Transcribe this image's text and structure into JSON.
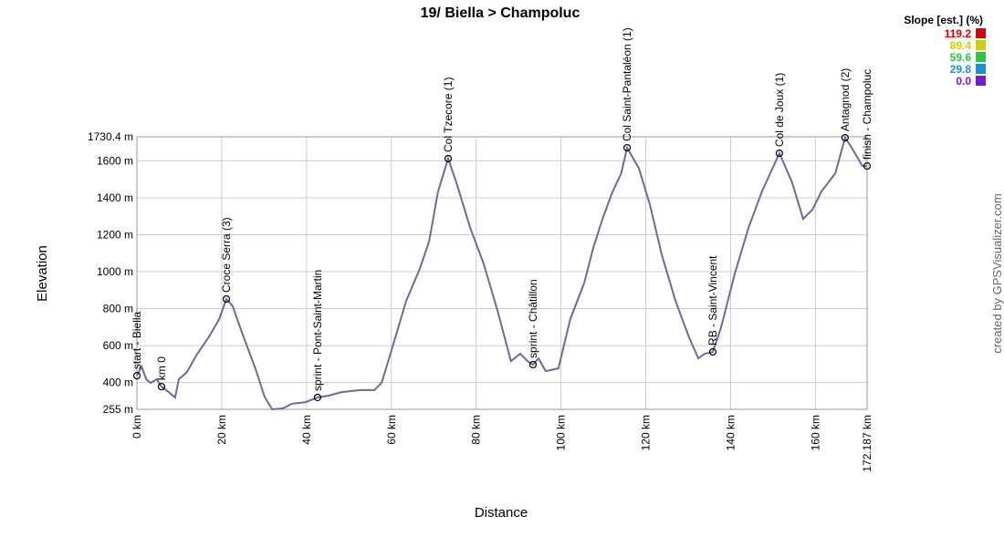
{
  "chart_data": {
    "type": "line",
    "title": "19/ Biella > Champoluc",
    "x_label": "Distance",
    "y_label": "Elevation",
    "credit": "created by GPSVisualizer.com",
    "series": [
      {
        "color": "#6b6b9e",
        "x": [
          0,
          1.1,
          2.2,
          3.2,
          4.7,
          5.8,
          7.5,
          9.0,
          9.9,
          11.8,
          14.0,
          17.2,
          19.4,
          21.1,
          22.6,
          24.8,
          28.0,
          30.1,
          31.9,
          34.4,
          36.6,
          39.8,
          42.6,
          45.2,
          48.4,
          52.7,
          56.0,
          57.7,
          60.3,
          63.5,
          66.7,
          68.9,
          71.0,
          73.4,
          75.3,
          78.6,
          81.8,
          85.0,
          88.2,
          90.4,
          92.1,
          93.4,
          94.7,
          96.4,
          99.4,
          102.2,
          105.5,
          107.6,
          109.8,
          112.0,
          114.2,
          115.6,
          118.4,
          121.0,
          123.8,
          127.0,
          130.2,
          132.4,
          133.9,
          135.8,
          137.7,
          141.0,
          144.2,
          147.4,
          151.5,
          154.5,
          157.1,
          159.3,
          161.4,
          163.1,
          164.7,
          167.0,
          168.3,
          171.1,
          172.187
        ],
        "values": [
          437,
          487,
          418,
          398,
          418,
          378,
          349,
          319,
          418,
          457,
          546,
          655,
          743,
          852,
          813,
          669,
          472,
          324,
          255,
          260,
          285,
          294,
          319,
          329,
          349,
          359,
          359,
          398,
          595,
          842,
          1015,
          1163,
          1434,
          1612,
          1484,
          1237,
          1040,
          793,
          516,
          556,
          516,
          497,
          531,
          462,
          477,
          743,
          941,
          1128,
          1286,
          1424,
          1533,
          1671,
          1558,
          1360,
          1089,
          842,
          645,
          531,
          556,
          566,
          694,
          990,
          1237,
          1434,
          1641,
          1484,
          1286,
          1336,
          1434,
          1484,
          1533,
          1725,
          1681,
          1572,
          1572
        ]
      }
    ],
    "waypoints": [
      {
        "name": "start - Biella",
        "x": 0,
        "y": 437
      },
      {
        "name": "km 0",
        "x": 5.8,
        "y": 378
      },
      {
        "name": "Croce Serra (3)",
        "x": 21.1,
        "y": 852
      },
      {
        "name": "sprint - Pont-Saint-Martin",
        "x": 42.6,
        "y": 319
      },
      {
        "name": "Col Tzecore (1)",
        "x": 73.4,
        "y": 1612
      },
      {
        "name": "sprint - Châtillon",
        "x": 93.4,
        "y": 497
      },
      {
        "name": "Col Saint-Pantaléon (1)",
        "x": 115.6,
        "y": 1671
      },
      {
        "name": "RB - Saint-Vincent",
        "x": 135.8,
        "y": 566
      },
      {
        "name": "Col de Joux (1)",
        "x": 151.5,
        "y": 1641
      },
      {
        "name": "Antagnod (2)",
        "x": 167.0,
        "y": 1725
      },
      {
        "name": "finish - Champoluc",
        "x": 172.187,
        "y": 1572
      }
    ],
    "xlim": [
      0,
      172.187
    ],
    "xticks": [
      {
        "value": 0,
        "label": "0 km"
      },
      {
        "value": 20,
        "label": "20 km"
      },
      {
        "value": 40,
        "label": "40 km"
      },
      {
        "value": 60,
        "label": "60 km"
      },
      {
        "value": 80,
        "label": "80 km"
      },
      {
        "value": 100,
        "label": "100 km"
      },
      {
        "value": 120,
        "label": "120 km"
      },
      {
        "value": 140,
        "label": "140 km"
      },
      {
        "value": 160,
        "label": "160 km"
      },
      {
        "value": 172.187,
        "label": "172.187 km"
      }
    ],
    "ylim": [
      255,
      1730.4
    ],
    "yticks": [
      {
        "value": 255,
        "label": "255 m"
      },
      {
        "value": 400,
        "label": "400 m"
      },
      {
        "value": 600,
        "label": "600 m"
      },
      {
        "value": 800,
        "label": "800 m"
      },
      {
        "value": 1000,
        "label": "1000 m"
      },
      {
        "value": 1200,
        "label": "1200 m"
      },
      {
        "value": 1400,
        "label": "1400 m"
      },
      {
        "value": 1600,
        "label": "1600 m"
      },
      {
        "value": 1730.4,
        "label": "1730.4 m"
      }
    ],
    "grid": true,
    "legend": {
      "title": "Slope [est.] (%)",
      "values": [
        119.2,
        89.4,
        59.6,
        29.8,
        0
      ],
      "value_labels": [
        "119.2",
        "89.4",
        "59.6",
        "29.8",
        "0.0"
      ],
      "colors": [
        "#e00000",
        "#c8d400",
        "#22cc44",
        "#1a8fd8",
        "#7a18d8"
      ]
    }
  }
}
